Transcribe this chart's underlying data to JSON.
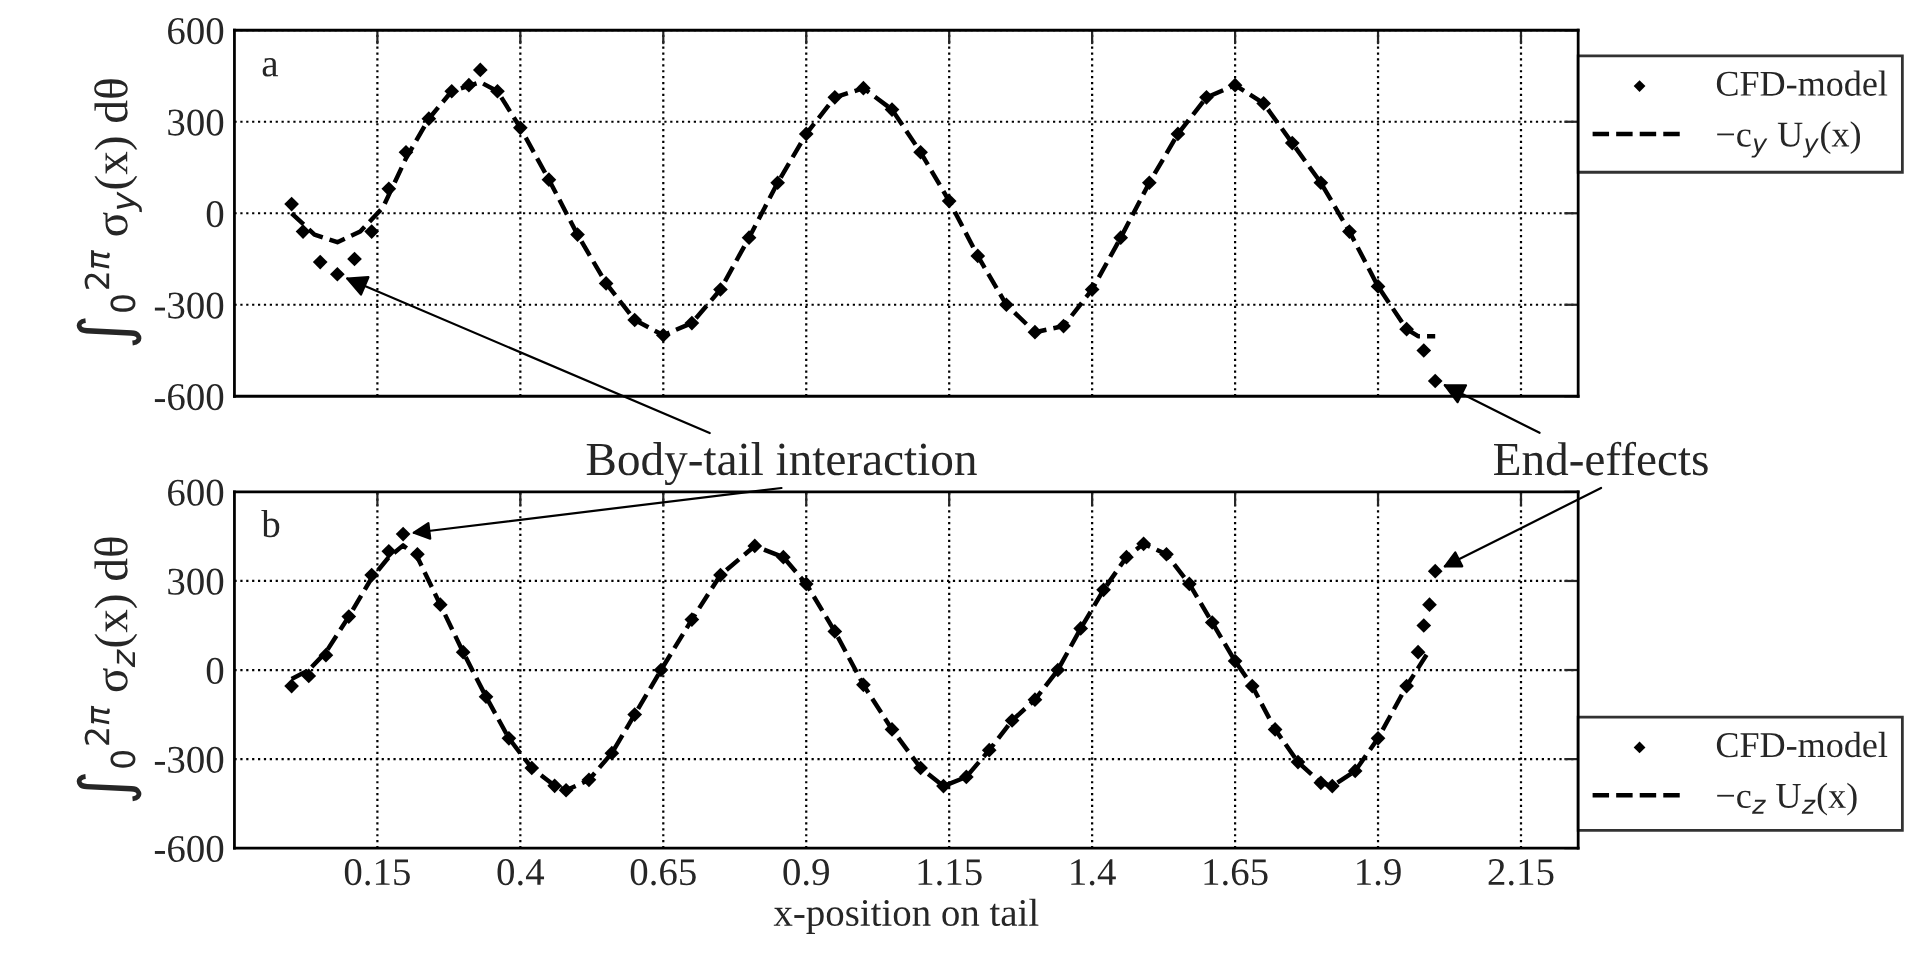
{
  "chart_data": [
    {
      "type": "scatter",
      "ylabel": "∫$_{0}$$^{2π}$ σ$_{y}$(x) dθ",
      "xlim": [
        -0.1,
        2.25
      ],
      "xticks": [
        0.15,
        0.4,
        0.65,
        0.9,
        1.15,
        1.4,
        1.65,
        1.9,
        2.15
      ],
      "ylim": [
        -600,
        600
      ],
      "tick_labels": "y",
      "grid": true,
      "legend": "top right",
      "yticks": [
        -600,
        -300,
        0,
        300,
        600
      ],
      "annotations": [
        "a",
        {
          "text": "Body-tail interaction",
          "x": 0.08,
          "y": -200
        },
        {
          "text": "End-effects",
          "x": 2.0,
          "y": -548
        }
      ],
      "series": [
        {
          "name": "CFD-model",
          "color": "#000000",
          "marker": "diamond",
          "x": [
            0.0,
            0.02,
            0.05,
            0.08,
            0.11,
            0.14,
            0.17,
            0.2,
            0.24,
            0.28,
            0.31,
            0.33,
            0.36,
            0.4,
            0.45,
            0.5,
            0.55,
            0.6,
            0.65,
            0.7,
            0.75,
            0.8,
            0.85,
            0.9,
            0.95,
            1.0,
            1.05,
            1.1,
            1.15,
            1.2,
            1.25,
            1.3,
            1.35,
            1.4,
            1.45,
            1.5,
            1.55,
            1.6,
            1.65,
            1.7,
            1.75,
            1.8,
            1.85,
            1.9,
            1.95,
            1.98,
            2.0
          ],
          "values": [
            30,
            -60,
            -160,
            -200,
            -150,
            -60,
            80,
            200,
            310,
            400,
            420,
            470,
            400,
            280,
            110,
            -70,
            -230,
            -350,
            -400,
            -360,
            -250,
            -80,
            100,
            260,
            380,
            410,
            340,
            200,
            40,
            -140,
            -300,
            -390,
            -370,
            -250,
            -80,
            100,
            260,
            380,
            420,
            360,
            230,
            100,
            -60,
            -240,
            -380,
            -450,
            -550
          ]
        },
        {
          "name": "−c$_{y}$ U$_{y}$(x)",
          "type": "line",
          "color": "#000000",
          "line_style": "dashed",
          "x": [
            0.0,
            0.04,
            0.08,
            0.12,
            0.16,
            0.2,
            0.24,
            0.28,
            0.33,
            0.36,
            0.4,
            0.45,
            0.5,
            0.55,
            0.6,
            0.65,
            0.7,
            0.75,
            0.8,
            0.85,
            0.9,
            0.95,
            1.0,
            1.05,
            1.1,
            1.15,
            1.2,
            1.25,
            1.3,
            1.35,
            1.4,
            1.45,
            1.5,
            1.55,
            1.6,
            1.65,
            1.7,
            1.75,
            1.8,
            1.85,
            1.9,
            1.95,
            1.97,
            2.0
          ],
          "values": [
            0,
            -70,
            -95,
            -60,
            20,
            180,
            310,
            400,
            430,
            400,
            280,
            110,
            -70,
            -230,
            -350,
            -400,
            -360,
            -250,
            -80,
            100,
            260,
            380,
            410,
            340,
            200,
            40,
            -140,
            -300,
            -390,
            -370,
            -250,
            -80,
            100,
            260,
            380,
            420,
            360,
            230,
            100,
            -60,
            -240,
            -380,
            -403,
            -403
          ]
        }
      ]
    },
    {
      "type": "scatter",
      "ylabel": "∫$_{0}$$^{2π}$ σ$_{z}$(x) dθ",
      "xlabel": "x-position on tail",
      "xlim": [
        -0.1,
        2.25
      ],
      "xticks": [
        0.15,
        0.4,
        0.65,
        0.9,
        1.15,
        1.4,
        1.65,
        1.9,
        2.15
      ],
      "ylim": [
        -600,
        600
      ],
      "yticks": [
        -600,
        -300,
        0,
        300,
        600
      ],
      "grid": true,
      "legend": "bottom right",
      "annotations": [
        "b"
      ],
      "series": [
        {
          "name": "CFD-model",
          "color": "#000000",
          "marker": "diamond",
          "x": [
            0.0,
            0.03,
            0.06,
            0.1,
            0.14,
            0.17,
            0.195,
            0.22,
            0.26,
            0.3,
            0.34,
            0.38,
            0.42,
            0.46,
            0.48,
            0.52,
            0.56,
            0.6,
            0.646,
            0.7,
            0.75,
            0.81,
            0.86,
            0.9,
            0.95,
            1.0,
            1.05,
            1.1,
            1.14,
            1.18,
            1.22,
            1.26,
            1.3,
            1.34,
            1.38,
            1.42,
            1.46,
            1.49,
            1.53,
            1.57,
            1.61,
            1.65,
            1.68,
            1.72,
            1.76,
            1.8,
            1.82,
            1.86,
            1.9,
            1.95,
            1.97,
            1.98,
            1.99,
            2.0
          ],
          "values": [
            -54,
            -20,
            50,
            180,
            320,
            400,
            458,
            390,
            220,
            60,
            -90,
            -230,
            -330,
            -390,
            -405,
            -370,
            -280,
            -150,
            0,
            170,
            320,
            418,
            380,
            290,
            130,
            -50,
            -200,
            -330,
            -391,
            -360,
            -270,
            -170,
            -100,
            0,
            140,
            270,
            380,
            425,
            390,
            290,
            160,
            30,
            -54,
            -200,
            -310,
            -380,
            -391,
            -340,
            -230,
            -54,
            60,
            150,
            220,
            333
          ]
        },
        {
          "name": "−c$_{z}$ U$_{z}$(x)",
          "type": "line",
          "color": "#000000",
          "line_style": "dashed",
          "x": [
            0.0,
            0.03,
            0.06,
            0.1,
            0.14,
            0.17,
            0.195,
            0.22,
            0.26,
            0.3,
            0.34,
            0.38,
            0.42,
            0.46,
            0.48,
            0.52,
            0.56,
            0.6,
            0.646,
            0.7,
            0.75,
            0.81,
            0.86,
            0.9,
            0.95,
            1.0,
            1.05,
            1.1,
            1.14,
            1.18,
            1.22,
            1.26,
            1.3,
            1.34,
            1.38,
            1.42,
            1.46,
            1.49,
            1.53,
            1.57,
            1.61,
            1.65,
            1.68,
            1.72,
            1.76,
            1.8,
            1.82,
            1.86,
            1.9,
            1.95,
            1.99
          ],
          "values": [
            -30,
            0,
            60,
            180,
            310,
            380,
            420,
            380,
            220,
            60,
            -90,
            -230,
            -330,
            -390,
            -405,
            -370,
            -280,
            -150,
            0,
            170,
            320,
            418,
            380,
            290,
            130,
            -50,
            -200,
            -330,
            -391,
            -360,
            -270,
            -170,
            -100,
            0,
            140,
            270,
            380,
            425,
            390,
            290,
            160,
            30,
            -54,
            -200,
            -310,
            -380,
            -391,
            -340,
            -230,
            -54,
            67
          ]
        }
      ]
    }
  ]
}
